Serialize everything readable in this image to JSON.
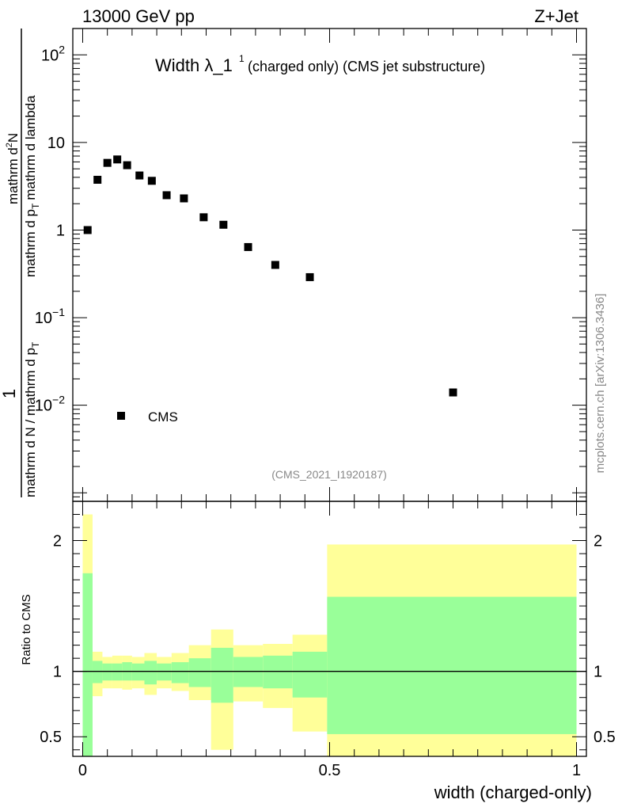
{
  "header": {
    "energy_label": "13000 GeV pp",
    "process_label": "Z+Jet"
  },
  "colors": {
    "band_outer": "#ffff99",
    "band_inner": "#99ff99",
    "marker": "#000000",
    "axis": "#000000",
    "watermark": "#888888"
  },
  "chart_data": [
    {
      "id": "main",
      "type": "scatter",
      "title_main": "Width λ_1",
      "title_sup": "1",
      "title_suffix": "(charged only) (CMS jet substructure)",
      "ylabel_numer_top": "1",
      "ylabel_denom_top": "mathrm d N / mathrm d p",
      "ylabel_denom_sub": "T",
      "ylabel_numer": "mathrm d",
      "ylabel_numer_sup": "2",
      "ylabel_numer_tail": "N",
      "ylabel_denom": "mathrm d p",
      "ylabel_denom_sub2": "T",
      "ylabel_denom_tail": "mathrm d lambda",
      "yscale": "log",
      "ylim": [
        0.0008,
        200
      ],
      "xlim": [
        -0.02,
        1.02
      ],
      "yticks": [
        {
          "value": 100,
          "label": "10",
          "sup": "2"
        },
        {
          "value": 10,
          "label": "10",
          "sup": ""
        },
        {
          "value": 1,
          "label": "1",
          "sup": ""
        },
        {
          "value": 0.1,
          "label": "10",
          "sup": "−1"
        },
        {
          "value": 0.01,
          "label": "10",
          "sup": "−2"
        }
      ],
      "series": [
        {
          "name": "CMS",
          "marker": "square",
          "x": [
            0.01,
            0.03,
            0.05,
            0.07,
            0.09,
            0.115,
            0.14,
            0.17,
            0.205,
            0.245,
            0.285,
            0.335,
            0.39,
            0.46,
            0.75
          ],
          "y": [
            1.0,
            3.75,
            5.85,
            6.4,
            5.5,
            4.2,
            3.65,
            2.5,
            2.3,
            1.4,
            1.15,
            0.64,
            0.4,
            0.29,
            0.014
          ]
        }
      ],
      "legend_label": "CMS",
      "analysis_id": "(CMS_2021_I1920187)"
    },
    {
      "id": "ratio",
      "type": "area",
      "ylabel": "Ratio to CMS",
      "xlabel": "width (charged-only)",
      "ylim": [
        0.35,
        2.3
      ],
      "xlim": [
        -0.02,
        1.02
      ],
      "xticks": [
        {
          "value": 0,
          "label": "0"
        },
        {
          "value": 0.5,
          "label": "0.5"
        },
        {
          "value": 1,
          "label": "1"
        }
      ],
      "yticks": [
        {
          "value": 0.5,
          "label": "0.5"
        },
        {
          "value": 1,
          "label": "1"
        },
        {
          "value": 2,
          "label": "2"
        }
      ],
      "bins": [
        {
          "lo": 0.0,
          "hi": 0.02,
          "in_lo": 0.35,
          "in_hi": 1.75,
          "out_lo": 0.35,
          "out_hi": 2.2
        },
        {
          "lo": 0.02,
          "hi": 0.04,
          "in_lo": 0.91,
          "in_hi": 1.08,
          "out_lo": 0.81,
          "out_hi": 1.15
        },
        {
          "lo": 0.04,
          "hi": 0.06,
          "in_lo": 0.93,
          "in_hi": 1.06,
          "out_lo": 0.87,
          "out_hi": 1.11
        },
        {
          "lo": 0.06,
          "hi": 0.08,
          "in_lo": 0.93,
          "in_hi": 1.06,
          "out_lo": 0.87,
          "out_hi": 1.12
        },
        {
          "lo": 0.08,
          "hi": 0.1,
          "in_lo": 0.93,
          "in_hi": 1.07,
          "out_lo": 0.86,
          "out_hi": 1.12
        },
        {
          "lo": 0.1,
          "hi": 0.125,
          "in_lo": 0.93,
          "in_hi": 1.06,
          "out_lo": 0.87,
          "out_hi": 1.11
        },
        {
          "lo": 0.125,
          "hi": 0.15,
          "in_lo": 0.9,
          "in_hi": 1.08,
          "out_lo": 0.82,
          "out_hi": 1.14
        },
        {
          "lo": 0.15,
          "hi": 0.18,
          "in_lo": 0.93,
          "in_hi": 1.06,
          "out_lo": 0.87,
          "out_hi": 1.11
        },
        {
          "lo": 0.18,
          "hi": 0.215,
          "in_lo": 0.91,
          "in_hi": 1.07,
          "out_lo": 0.85,
          "out_hi": 1.14
        },
        {
          "lo": 0.215,
          "hi": 0.26,
          "in_lo": 0.88,
          "in_hi": 1.1,
          "out_lo": 0.78,
          "out_hi": 1.2
        },
        {
          "lo": 0.26,
          "hi": 0.305,
          "in_lo": 0.76,
          "in_hi": 1.18,
          "out_lo": 0.4,
          "out_hi": 1.32
        },
        {
          "lo": 0.305,
          "hi": 0.365,
          "in_lo": 0.88,
          "in_hi": 1.11,
          "out_lo": 0.77,
          "out_hi": 1.2
        },
        {
          "lo": 0.365,
          "hi": 0.425,
          "in_lo": 0.87,
          "in_hi": 1.12,
          "out_lo": 0.72,
          "out_hi": 1.21
        },
        {
          "lo": 0.425,
          "hi": 0.495,
          "in_lo": 0.8,
          "in_hi": 1.15,
          "out_lo": 0.54,
          "out_hi": 1.28
        },
        {
          "lo": 0.495,
          "hi": 1.0,
          "in_lo": 0.52,
          "in_hi": 1.57,
          "out_lo": 0.35,
          "out_hi": 1.97
        }
      ],
      "reference_value": 1
    }
  ],
  "watermark": "mcplots.cern.ch [arXiv:1306.3436]"
}
